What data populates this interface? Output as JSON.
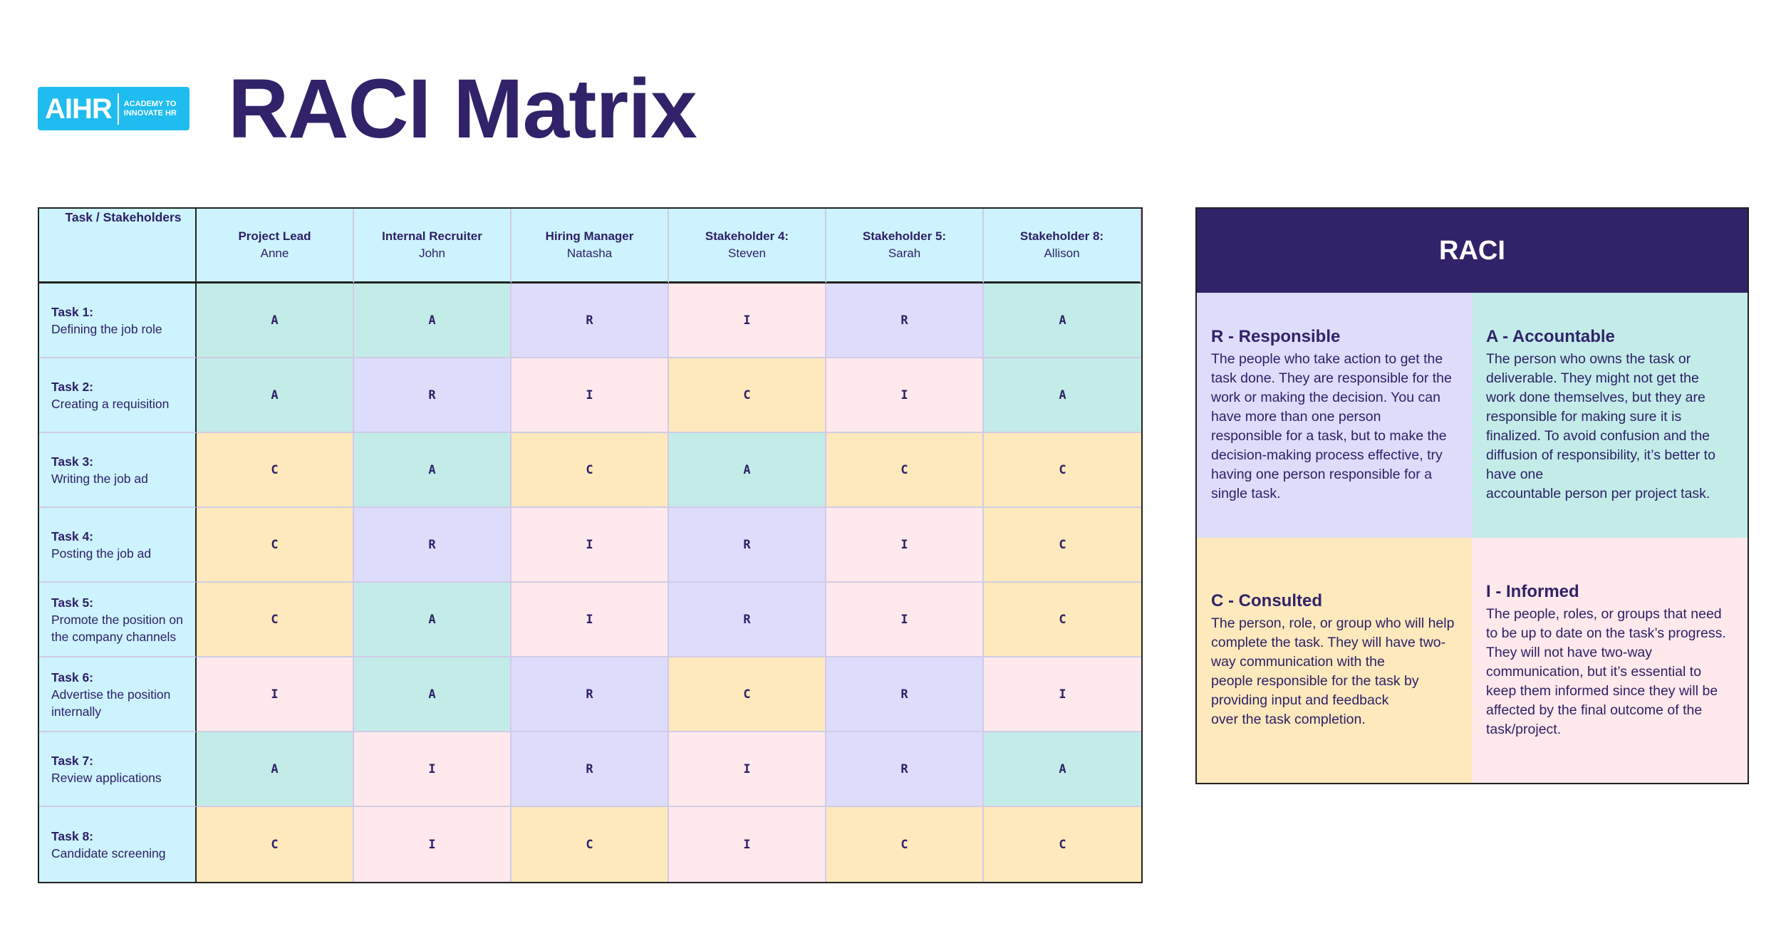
{
  "logo": {
    "mark": "AIHR",
    "tagline_1": "ACADEMY TO",
    "tagline_2": "INNOVATE HR"
  },
  "title": "RACI Matrix",
  "colors": {
    "A": "#c3ece9",
    "R": "#dedcfb",
    "C": "#fee9bd",
    "I": "#ffe9ec",
    "header": "#cdf3fe",
    "brand": "#32226a"
  },
  "matrix": {
    "corner": "Task / Stakeholders",
    "stakeholders": [
      {
        "role": "Project Lead",
        "name": "Anne"
      },
      {
        "role": "Internal Recruiter",
        "name": "John"
      },
      {
        "role": "Hiring Manager",
        "name": "Natasha"
      },
      {
        "role": "Stakeholder 4:",
        "name": "Steven"
      },
      {
        "role": "Stakeholder 5:",
        "name": "Sarah"
      },
      {
        "role": "Stakeholder 8:",
        "name": "Allison"
      }
    ],
    "tasks": [
      {
        "label": "Task 1:",
        "desc": "Defining the job role",
        "values": [
          "A",
          "A",
          "R",
          "I",
          "R",
          "A"
        ]
      },
      {
        "label": "Task 2:",
        "desc": "Creating a requisition",
        "values": [
          "A",
          "R",
          "I",
          "C",
          "I",
          "A"
        ]
      },
      {
        "label": "Task 3:",
        "desc": "Writing the job ad",
        "values": [
          "C",
          "A",
          "C",
          "A",
          "C",
          "C"
        ]
      },
      {
        "label": "Task 4:",
        "desc": "Posting the job ad",
        "values": [
          "C",
          "R",
          "I",
          "R",
          "I",
          "C"
        ]
      },
      {
        "label": "Task 5:",
        "desc": "Promote the position on the company channels",
        "values": [
          "C",
          "A",
          "I",
          "R",
          "I",
          "C"
        ]
      },
      {
        "label": "Task 6:",
        "desc": "Advertise the position internally",
        "values": [
          "I",
          "A",
          "R",
          "C",
          "R",
          "I"
        ]
      },
      {
        "label": "Task 7:",
        "desc": "Review applications",
        "values": [
          "A",
          "I",
          "R",
          "I",
          "R",
          "A"
        ]
      },
      {
        "label": "Task 8:",
        "desc": "Candidate screening",
        "values": [
          "C",
          "I",
          "C",
          "I",
          "C",
          "C"
        ]
      }
    ]
  },
  "legend": {
    "title": "RACI",
    "items": [
      {
        "key": "R",
        "heading": "R - Responsible",
        "text": "The people who take action to get the\ntask done. They are responsible for the\nwork or making the decision. You can\nhave more than one person\nresponsible for a task, but to make the\ndecision-making process effective, try\nhaving one person responsible for a\nsingle task."
      },
      {
        "key": "A",
        "heading": "A - Accountable",
        "text": "The person who owns the task or\ndeliverable. They might not get the\nwork done themselves, but they are\nresponsible for making sure it is\nfinalized. To avoid confusion and the\ndiffusion of responsibility, it’s better to\nhave one\naccountable person per project task."
      },
      {
        "key": "C",
        "heading": "C - Consulted",
        "text": "The person, role, or group who will help\ncomplete the task. They will have two-\nway communication with the\npeople responsible for the task by\nproviding input and feedback\nover the task completion."
      },
      {
        "key": "I",
        "heading": "I - Informed",
        "text": "The people, roles, or groups that need\nto be up to date on the task’s progress.\nThey will not have two-way\ncommunication, but it’s essential to\nkeep them informed since they will be\naffected by the final outcome of the\ntask/project."
      }
    ]
  }
}
